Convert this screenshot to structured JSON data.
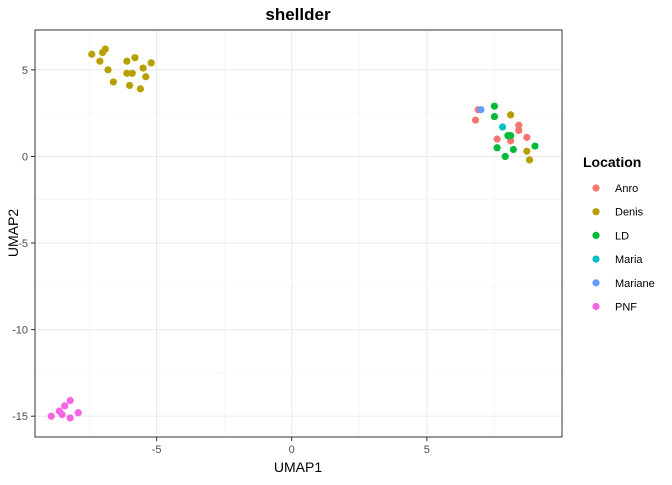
{
  "chart_data": {
    "type": "scatter",
    "title": "shellder",
    "xlabel": "UMAP1",
    "ylabel": "UMAP2",
    "xlim": [
      -9.5,
      10.0
    ],
    "ylim": [
      -16.2,
      7.3
    ],
    "x_ticks": [
      -5,
      0,
      5
    ],
    "y_ticks": [
      5,
      0,
      -5,
      -10,
      -15
    ],
    "grid": true,
    "legend": {
      "title": "Location",
      "position": "right"
    },
    "series": [
      {
        "name": "Anro",
        "color": "#F8766D",
        "points": [
          [
            6.9,
            2.7
          ],
          [
            6.8,
            2.1
          ],
          [
            7.6,
            1.0
          ],
          [
            8.4,
            1.8
          ],
          [
            8.4,
            1.5
          ],
          [
            8.7,
            1.1
          ],
          [
            8.1,
            0.9
          ]
        ]
      },
      {
        "name": "Denis",
        "color": "#B79F00",
        "points": [
          [
            -7.4,
            5.9
          ],
          [
            -7.0,
            6.0
          ],
          [
            -6.9,
            6.2
          ],
          [
            -7.1,
            5.5
          ],
          [
            -6.8,
            5.0
          ],
          [
            -6.6,
            4.3
          ],
          [
            -6.1,
            5.5
          ],
          [
            -5.8,
            5.7
          ],
          [
            -6.1,
            4.8
          ],
          [
            -5.9,
            4.8
          ],
          [
            -5.5,
            5.1
          ],
          [
            -5.2,
            5.4
          ],
          [
            -5.4,
            4.6
          ],
          [
            -6.0,
            4.1
          ],
          [
            -5.6,
            3.9
          ],
          [
            8.1,
            2.4
          ],
          [
            8.7,
            0.3
          ],
          [
            8.8,
            -0.2
          ]
        ]
      },
      {
        "name": "LD",
        "color": "#00BA38",
        "points": [
          [
            7.5,
            2.9
          ],
          [
            7.5,
            2.3
          ],
          [
            8.1,
            1.2
          ],
          [
            8.0,
            1.2
          ],
          [
            7.6,
            0.5
          ],
          [
            7.9,
            0.0
          ],
          [
            8.2,
            0.4
          ],
          [
            9.0,
            0.6
          ]
        ]
      },
      {
        "name": "Maria",
        "color": "#00BFC4",
        "points": [
          [
            7.8,
            1.7
          ]
        ]
      },
      {
        "name": "Mariane",
        "color": "#619CFF",
        "points": [
          [
            7.0,
            2.7
          ]
        ]
      },
      {
        "name": "PNF",
        "color": "#F564E3",
        "points": [
          [
            -8.2,
            -14.1
          ],
          [
            -8.4,
            -14.4
          ],
          [
            -8.6,
            -14.7
          ],
          [
            -8.9,
            -15.0
          ],
          [
            -8.5,
            -14.9
          ],
          [
            -8.2,
            -15.1
          ],
          [
            -7.9,
            -14.8
          ]
        ]
      }
    ]
  }
}
